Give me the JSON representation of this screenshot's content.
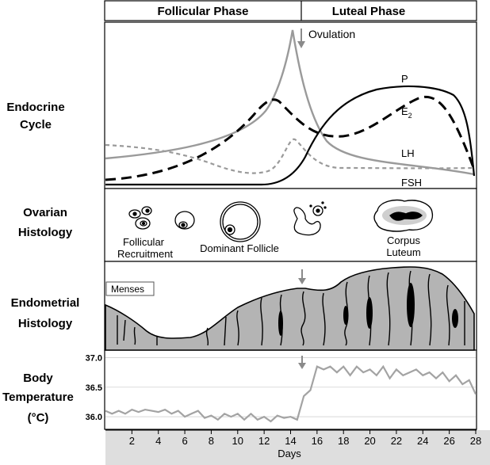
{
  "phases": {
    "follicular": "Follicular Phase",
    "luteal": "Luteal Phase"
  },
  "rows": {
    "endocrine": [
      "Endocrine",
      "Cycle"
    ],
    "ovarian": [
      "Ovarian",
      "Histology"
    ],
    "endometrial": [
      "Endometrial",
      "Histology"
    ],
    "temperature": [
      "Body",
      "Temperature",
      "(°C)"
    ]
  },
  "hormones": {
    "ovulation": "Ovulation",
    "p": "P",
    "e2": "E",
    "e2_sub": "2",
    "lh": "LH",
    "fsh": "FSH"
  },
  "histology": {
    "follicular_recruitment": [
      "Follicular",
      "Recruitment"
    ],
    "dominant_follicle": "Dominant Follicle",
    "corpus_luteum": [
      "Corpus",
      "Luteum"
    ]
  },
  "menses": "Menses",
  "days_label": "Days",
  "colors": {
    "gray_curve": "#9a9a9a",
    "endometrium_fill": "#b4b4b4",
    "axis_band": "#dedede"
  },
  "chart_data": {
    "type": "line",
    "xlabel": "Days",
    "ylabel": "",
    "x_ticks": [
      2,
      4,
      6,
      8,
      10,
      12,
      14,
      16,
      18,
      20,
      22,
      24,
      26,
      28
    ],
    "y_ticks": [
      "37.0",
      "36.5",
      "36.0"
    ],
    "ylim": [
      35.8,
      37.1
    ],
    "xlim": [
      0,
      28
    ],
    "series": [
      {
        "x": [
          0,
          0.5,
          1,
          1.5,
          2,
          2.5,
          3,
          3.5,
          4,
          4.5,
          5,
          5.5,
          6,
          6.5,
          7,
          7.5,
          8,
          8.5,
          9,
          9.5,
          10,
          10.5,
          11,
          11.5,
          12,
          12.5,
          13,
          13.5,
          14,
          14.5,
          15,
          15.5,
          16,
          16.5,
          17,
          17.5,
          18,
          18.5,
          19,
          19.5,
          20,
          20.5,
          21,
          21.5,
          22,
          22.5,
          23,
          23.5,
          24,
          24.5,
          25,
          25.5,
          26,
          26.5,
          27,
          27.5,
          28
        ],
        "values": [
          36.1,
          36.05,
          36.1,
          36.05,
          36.12,
          36.08,
          36.12,
          36.1,
          36.08,
          36.12,
          36.05,
          36.1,
          36.0,
          36.05,
          36.1,
          35.98,
          36.02,
          35.95,
          36.05,
          36.0,
          36.05,
          35.95,
          36.05,
          35.95,
          36.0,
          35.92,
          36.02,
          35.98,
          36.0,
          35.95,
          36.35,
          36.45,
          36.85,
          36.8,
          36.85,
          36.75,
          36.85,
          36.7,
          36.85,
          36.75,
          36.8,
          36.7,
          36.85,
          36.65,
          36.8,
          36.7,
          36.75,
          36.8,
          36.7,
          36.75,
          36.65,
          36.75,
          36.6,
          36.7,
          36.55,
          36.62,
          36.38
        ]
      }
    ]
  }
}
